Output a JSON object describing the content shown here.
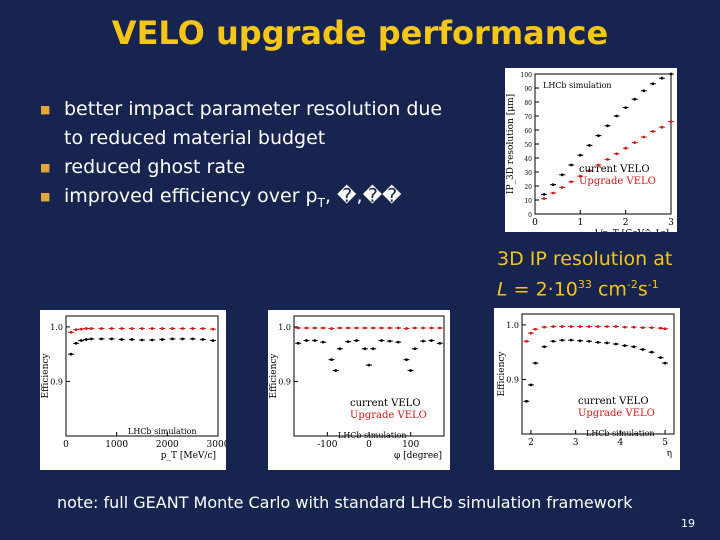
{
  "slide": {
    "title": "VELO upgrade performance",
    "bullets": [
      {
        "text": "better impact parameter resolution due to reduced material budget"
      },
      {
        "text": "reduced ghost rate"
      },
      {
        "text": "improved efficiency over p",
        "sub": "T",
        "tail": ", �,��"
      }
    ],
    "caption_line1": "3D IP resolution at",
    "caption_line2_pre": "L",
    "caption_line2_mid": " = 2·10",
    "caption_line2_exp": "33",
    "caption_line2_unit": " cm",
    "caption_line2_exp2": "-2",
    "caption_line2_s": "s",
    "caption_line2_exp3": "-1",
    "note": "note: full GEANT Monte Carlo with standard LHCb simulation framework",
    "page_number": "19"
  },
  "legend": {
    "current": "current VELO",
    "upgrade": "Upgrade VELO",
    "lhcb": "LHCb simulation"
  },
  "colors": {
    "title": "#f5c518",
    "background": "#17244f",
    "current": "#000000",
    "upgrade": "#d01818",
    "bullet_marker": "#e3a83a"
  },
  "chart_data": [
    {
      "type": "scatter",
      "title": "",
      "xlabel": "1/p_T [GeV^-1c]",
      "ylabel": "IP_3D resolution [μm]",
      "x_ticks": [
        "0",
        "1",
        "2",
        "3"
      ],
      "y_ticks": [
        "0",
        "10",
        "20",
        "30",
        "40",
        "50",
        "60",
        "70",
        "80",
        "90",
        "100"
      ],
      "xlim": [
        0,
        3
      ],
      "ylim": [
        0,
        100
      ],
      "series": [
        {
          "name": "current VELO",
          "x": [
            0.2,
            0.4,
            0.6,
            0.8,
            1.0,
            1.2,
            1.4,
            1.6,
            1.8,
            2.0,
            2.2,
            2.4,
            2.6,
            2.8,
            3.0
          ],
          "y": [
            14,
            21,
            28,
            35,
            42,
            49,
            56,
            63,
            70,
            76,
            82,
            88,
            93,
            97,
            101
          ]
        },
        {
          "name": "Upgrade VELO",
          "x": [
            0.2,
            0.4,
            0.6,
            0.8,
            1.0,
            1.2,
            1.4,
            1.6,
            1.8,
            2.0,
            2.2,
            2.4,
            2.6,
            2.8,
            3.0
          ],
          "y": [
            11,
            15,
            19,
            23,
            27,
            31,
            35,
            39,
            43,
            47,
            51,
            55,
            59,
            62,
            66
          ]
        }
      ]
    },
    {
      "type": "scatter",
      "xlabel": "p_T [MeV/c]",
      "ylabel": "Efficiency",
      "x_ticks": [
        "0",
        "1000",
        "2000",
        "3000"
      ],
      "y_ticks": [
        "0.9",
        "1.0"
      ],
      "xlim": [
        0,
        3000
      ],
      "ylim": [
        0.8,
        1.02
      ],
      "series": [
        {
          "name": "current VELO",
          "x": [
            100,
            200,
            300,
            400,
            500,
            700,
            900,
            1100,
            1300,
            1500,
            1700,
            1900,
            2100,
            2300,
            2500,
            2700,
            2900
          ],
          "y": [
            0.95,
            0.97,
            0.975,
            0.977,
            0.978,
            0.978,
            0.978,
            0.977,
            0.977,
            0.976,
            0.976,
            0.977,
            0.978,
            0.978,
            0.978,
            0.977,
            0.975
          ]
        },
        {
          "name": "Upgrade VELO",
          "x": [
            100,
            200,
            300,
            400,
            500,
            700,
            900,
            1100,
            1300,
            1500,
            1700,
            1900,
            2100,
            2300,
            2500,
            2700,
            2900
          ],
          "y": [
            0.99,
            0.995,
            0.996,
            0.997,
            0.997,
            0.997,
            0.997,
            0.997,
            0.997,
            0.997,
            0.997,
            0.997,
            0.997,
            0.997,
            0.997,
            0.997,
            0.996
          ]
        }
      ]
    },
    {
      "type": "scatter",
      "xlabel": "φ [degree]",
      "ylabel": "Efficiency",
      "x_ticks": [
        "-100",
        "0",
        "100"
      ],
      "y_ticks": [
        "0.9",
        "1.0"
      ],
      "xlim": [
        -180,
        180
      ],
      "ylim": [
        0.8,
        1.02
      ],
      "series": [
        {
          "name": "current VELO",
          "x": [
            -170,
            -150,
            -130,
            -110,
            -90,
            -80,
            -70,
            -50,
            -30,
            -10,
            0,
            10,
            30,
            50,
            70,
            90,
            100,
            110,
            130,
            150,
            170
          ],
          "y": [
            0.97,
            0.975,
            0.975,
            0.972,
            0.94,
            0.92,
            0.96,
            0.973,
            0.975,
            0.96,
            0.93,
            0.96,
            0.975,
            0.974,
            0.972,
            0.94,
            0.92,
            0.96,
            0.974,
            0.975,
            0.97
          ]
        },
        {
          "name": "Upgrade VELO",
          "x": [
            -170,
            -150,
            -130,
            -110,
            -90,
            -70,
            -50,
            -30,
            -10,
            10,
            30,
            50,
            70,
            90,
            110,
            130,
            150,
            170
          ],
          "y": [
            0.998,
            0.998,
            0.998,
            0.998,
            0.997,
            0.998,
            0.998,
            0.998,
            0.998,
            0.998,
            0.998,
            0.998,
            0.998,
            0.997,
            0.998,
            0.998,
            0.998,
            0.998
          ]
        }
      ]
    },
    {
      "type": "scatter",
      "xlabel": "η",
      "ylabel": "Efficiency",
      "x_ticks": [
        "2",
        "3",
        "4",
        "5"
      ],
      "y_ticks": [
        "0.9",
        "1.0"
      ],
      "xlim": [
        1.8,
        5.2
      ],
      "ylim": [
        0.8,
        1.02
      ],
      "series": [
        {
          "name": "current VELO",
          "x": [
            1.9,
            2.0,
            2.1,
            2.3,
            2.5,
            2.7,
            2.9,
            3.1,
            3.3,
            3.5,
            3.7,
            3.9,
            4.1,
            4.3,
            4.5,
            4.7,
            4.9,
            5.0
          ],
          "y": [
            0.86,
            0.89,
            0.93,
            0.96,
            0.97,
            0.972,
            0.972,
            0.971,
            0.97,
            0.968,
            0.967,
            0.965,
            0.962,
            0.96,
            0.955,
            0.95,
            0.94,
            0.93
          ]
        },
        {
          "name": "Upgrade VELO",
          "x": [
            1.9,
            2.0,
            2.1,
            2.3,
            2.5,
            2.7,
            2.9,
            3.1,
            3.3,
            3.5,
            3.7,
            3.9,
            4.1,
            4.3,
            4.5,
            4.7,
            4.9,
            5.0
          ],
          "y": [
            0.97,
            0.985,
            0.992,
            0.996,
            0.997,
            0.997,
            0.997,
            0.997,
            0.997,
            0.997,
            0.997,
            0.997,
            0.996,
            0.996,
            0.995,
            0.995,
            0.994,
            0.993
          ]
        }
      ]
    }
  ]
}
